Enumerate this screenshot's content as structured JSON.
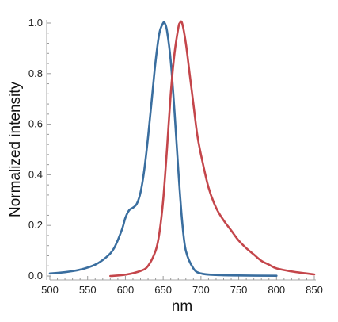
{
  "chart_data": {
    "type": "line",
    "xlabel": "nm",
    "ylabel": "Normalized intensity",
    "xlim": [
      500,
      850
    ],
    "ylim": [
      0,
      1
    ],
    "xticks": [
      500,
      550,
      600,
      650,
      700,
      750,
      800,
      850
    ],
    "yticks": [
      0.0,
      0.2,
      0.4,
      0.6,
      0.8,
      1.0
    ],
    "ytick_labels": [
      "0.0",
      "0.2",
      "0.4",
      "0.6",
      "0.8",
      "1.0"
    ],
    "grid": false,
    "legend": "none",
    "series": [
      {
        "color": "#3a6e9f",
        "x": [
          500,
          520,
          540,
          560,
          575,
          585,
          595,
          600,
          605,
          610,
          615,
          620,
          625,
          630,
          635,
          640,
          645,
          650,
          652,
          655,
          660,
          665,
          670,
          675,
          680,
          690,
          700,
          720,
          750,
          800
        ],
        "y": [
          0.01,
          0.015,
          0.025,
          0.045,
          0.075,
          0.11,
          0.18,
          0.23,
          0.26,
          0.27,
          0.285,
          0.33,
          0.42,
          0.55,
          0.7,
          0.85,
          0.96,
          1.0,
          1.0,
          0.97,
          0.85,
          0.65,
          0.42,
          0.22,
          0.1,
          0.03,
          0.01,
          0.004,
          0.002,
          0.001
        ]
      },
      {
        "color": "#c4464b",
        "x": [
          580,
          600,
          620,
          630,
          640,
          645,
          650,
          655,
          660,
          665,
          670,
          672,
          675,
          680,
          685,
          690,
          695,
          700,
          710,
          720,
          730,
          740,
          750,
          760,
          770,
          780,
          790,
          800,
          820,
          840,
          850
        ],
        "y": [
          0.0,
          0.005,
          0.02,
          0.04,
          0.1,
          0.17,
          0.3,
          0.5,
          0.72,
          0.88,
          0.98,
          1.0,
          1.0,
          0.92,
          0.8,
          0.68,
          0.56,
          0.48,
          0.35,
          0.27,
          0.22,
          0.18,
          0.14,
          0.11,
          0.085,
          0.06,
          0.045,
          0.03,
          0.018,
          0.01,
          0.006
        ]
      }
    ]
  }
}
